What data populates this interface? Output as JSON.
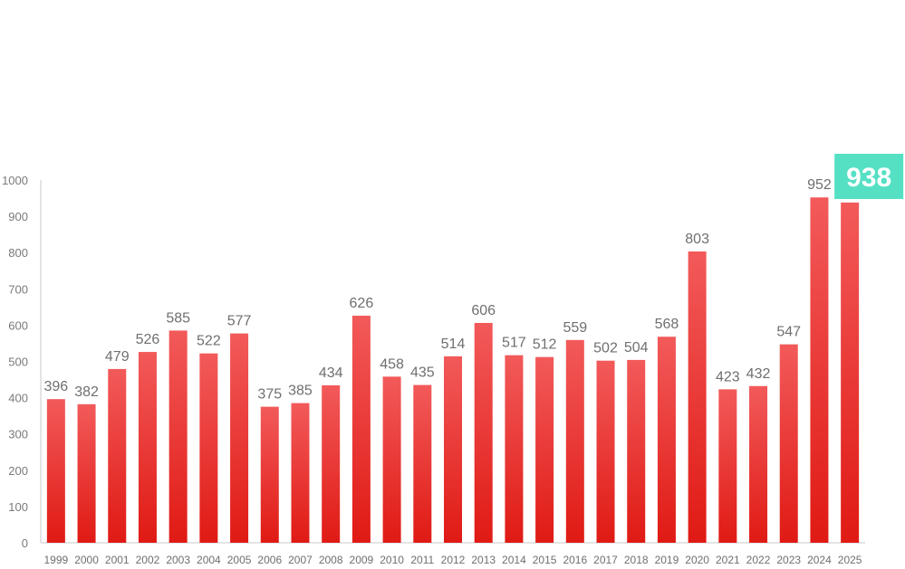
{
  "chart_data": {
    "type": "bar",
    "title": "",
    "xlabel": "",
    "ylabel": "",
    "ylim": [
      0,
      1000
    ],
    "yticks": [
      0,
      100,
      200,
      300,
      400,
      500,
      600,
      700,
      800,
      900,
      1000
    ],
    "grid": false,
    "legend": "none",
    "categories": [
      "1999",
      "2000",
      "2001",
      "2002",
      "2003",
      "2004",
      "2005",
      "2006",
      "2007",
      "2008",
      "2009",
      "2010",
      "2011",
      "2012",
      "2013",
      "2014",
      "2015",
      "2016",
      "2017",
      "2018",
      "2019",
      "2020",
      "2021",
      "2022",
      "2023",
      "2024",
      "2025"
    ],
    "values": [
      396,
      382,
      479,
      526,
      585,
      522,
      577,
      375,
      385,
      434,
      626,
      458,
      435,
      514,
      606,
      517,
      512,
      559,
      502,
      504,
      568,
      803,
      423,
      432,
      547,
      952,
      938
    ],
    "highlight": {
      "category": "2025",
      "label": "938"
    },
    "colors": {
      "bar_top": "#f25a5a",
      "bar_bottom": "#e01a14",
      "highlight_bg": "#55e0c4",
      "axis": "#c8c8c8",
      "text": "#707070"
    }
  }
}
